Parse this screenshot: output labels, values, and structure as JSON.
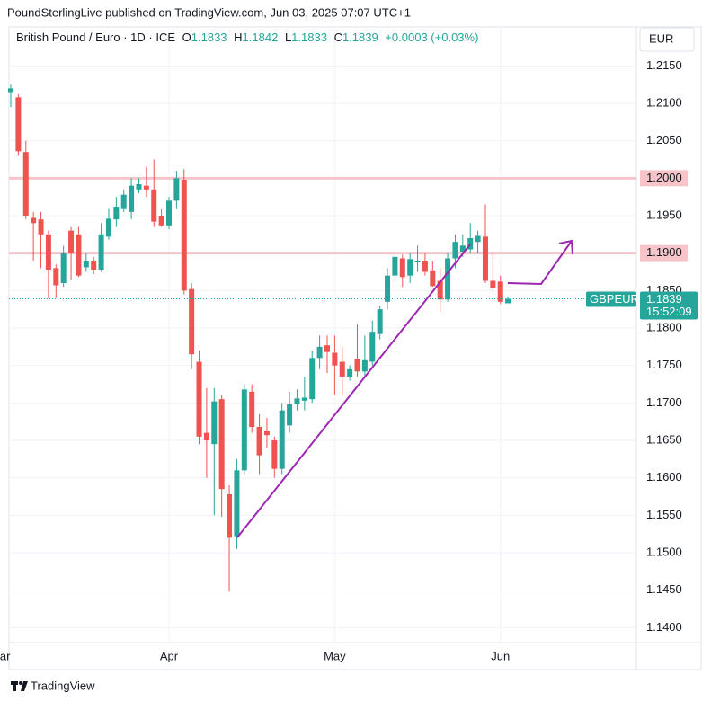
{
  "header": "PoundSterlingLive published on TradingView.com, Jun 03, 2025 07:07 UTC+1",
  "footer": "TradingView",
  "chart_data": {
    "type": "candlestick",
    "symbol_title": "British Pound / Euro · 1D · ICE",
    "legend": {
      "o_label": "O",
      "open": 1.1833,
      "h_label": "H",
      "high": 1.1842,
      "l_label": "L",
      "low": 1.1833,
      "c_label": "C",
      "close": 1.1839,
      "change": "+0.0003 (+0.03%)"
    },
    "currency": "EUR",
    "symbol": "GBPEUR",
    "last_price": 1.1839,
    "countdown": "15:52:09",
    "up_color": "#26a69a",
    "down_color": "#ef5350",
    "hline_color": "#f7c5c9",
    "trend_color": "#9c27b0",
    "hlines": [
      1.2,
      1.19
    ],
    "open": [
      1.2115,
      1.2108,
      1.2035,
      1.1947,
      1.1945,
      1.1925,
      1.188,
      1.186,
      1.193,
      1.1925,
      1.1881,
      1.189,
      1.1878,
      1.1922,
      1.1945,
      1.196,
      1.1955,
      1.1985,
      1.199,
      1.1985,
      1.195,
      1.1937,
      1.197,
      1.1998,
      1.1852,
      1.1755,
      1.166,
      1.1645,
      1.1705,
      1.1578,
      1.1522,
      1.161,
      1.1715,
      1.1668,
      1.1662,
      1.165,
      1.1612,
      1.167,
      1.1698,
      1.1703,
      1.1705,
      1.176,
      1.1777,
      1.1767,
      1.1755,
      1.1735,
      1.1758,
      1.1742,
      1.1755,
      1.1792,
      1.1835,
      1.187,
      1.1893,
      1.187,
      1.1888,
      1.189,
      1.1877,
      1.1863,
      1.1838,
      1.1893,
      1.1902,
      1.1905,
      1.1915,
      1.1922,
      1.1863,
      1.1862,
      1.1833
    ],
    "high": [
      1.2125,
      1.2112,
      1.205,
      1.1955,
      1.1955,
      1.193,
      1.1885,
      1.191,
      1.1935,
      1.1935,
      1.19,
      1.1895,
      1.194,
      1.196,
      1.1975,
      1.1985,
      1.2,
      1.2,
      1.2015,
      1.2025,
      1.196,
      1.1975,
      1.201,
      1.2012,
      1.186,
      1.177,
      1.172,
      1.172,
      1.171,
      1.159,
      1.1625,
      1.1725,
      1.1725,
      1.1685,
      1.168,
      1.1655,
      1.17,
      1.1715,
      1.1718,
      1.1735,
      1.177,
      1.179,
      1.179,
      1.179,
      1.1775,
      1.175,
      1.1805,
      1.179,
      1.181,
      1.183,
      1.188,
      1.19,
      1.1898,
      1.19,
      1.191,
      1.19,
      1.189,
      1.188,
      1.19,
      1.1925,
      1.1925,
      1.194,
      1.193,
      1.1965,
      1.19,
      1.187,
      1.1842
    ],
    "low": [
      1.2095,
      1.203,
      1.1945,
      1.189,
      1.188,
      1.184,
      1.184,
      1.1855,
      1.1865,
      1.1868,
      1.1875,
      1.1872,
      1.1875,
      1.1918,
      1.1935,
      1.1955,
      1.1945,
      1.198,
      1.1975,
      1.1935,
      1.1935,
      1.1932,
      1.196,
      1.1845,
      1.1745,
      1.1645,
      1.16,
      1.155,
      1.1548,
      1.1448,
      1.1505,
      1.1605,
      1.166,
      1.1605,
      1.164,
      1.16,
      1.1605,
      1.166,
      1.169,
      1.169,
      1.17,
      1.1745,
      1.174,
      1.171,
      1.171,
      1.173,
      1.1735,
      1.1735,
      1.175,
      1.1785,
      1.1825,
      1.1862,
      1.1855,
      1.186,
      1.1875,
      1.187,
      1.1855,
      1.1822,
      1.1835,
      1.188,
      1.1895,
      1.19,
      1.19,
      1.186,
      1.185,
      1.1832,
      1.1833
    ],
    "close": [
      1.212,
      1.2036,
      1.195,
      1.194,
      1.1925,
      1.1878,
      1.1857,
      1.19,
      1.19,
      1.187,
      1.189,
      1.1878,
      1.1925,
      1.1946,
      1.1962,
      1.1978,
      1.199,
      1.1992,
      1.1985,
      1.1942,
      1.1937,
      1.197,
      1.2,
      1.185,
      1.1765,
      1.1655,
      1.165,
      1.1702,
      1.1585,
      1.152,
      1.161,
      1.1718,
      1.1668,
      1.163,
      1.1657,
      1.1612,
      1.169,
      1.1698,
      1.1706,
      1.1707,
      1.176,
      1.1775,
      1.1768,
      1.175,
      1.1735,
      1.1745,
      1.1742,
      1.1757,
      1.1795,
      1.1825,
      1.187,
      1.1895,
      1.1868,
      1.1892,
      1.189,
      1.1875,
      1.1856,
      1.1838,
      1.1893,
      1.1915,
      1.191,
      1.192,
      1.1923,
      1.1863,
      1.1853,
      1.1835,
      1.1839
    ],
    "xlim": [
      -0.24,
      83.05
    ],
    "xticks": [
      {
        "value": -1.4,
        "label": "Mar"
      },
      {
        "value": 21,
        "label": "Apr"
      },
      {
        "value": 43,
        "label": "May"
      },
      {
        "value": 65,
        "label": "Jun"
      }
    ],
    "ylim": [
      1.138,
      1.2202
    ],
    "yticks": [
      {
        "value": 1.14,
        "label": "1.1400"
      },
      {
        "value": 1.145,
        "label": "1.1450"
      },
      {
        "value": 1.15,
        "label": "1.1500"
      },
      {
        "value": 1.155,
        "label": "1.1550"
      },
      {
        "value": 1.16,
        "label": "1.1600"
      },
      {
        "value": 1.165,
        "label": "1.1650"
      },
      {
        "value": 1.17,
        "label": "1.1700"
      },
      {
        "value": 1.175,
        "label": "1.1750"
      },
      {
        "value": 1.18,
        "label": "1.1800"
      },
      {
        "value": 1.185,
        "label": "1.1850"
      },
      {
        "value": 1.19,
        "label": "1.1900"
      },
      {
        "value": 1.195,
        "label": "1.1950"
      },
      {
        "value": 1.2,
        "label": "1.2000"
      },
      {
        "value": 1.205,
        "label": "1.2050"
      },
      {
        "value": 1.21,
        "label": "1.2100"
      },
      {
        "value": 1.215,
        "label": "1.2150"
      }
    ],
    "grid": true
  }
}
